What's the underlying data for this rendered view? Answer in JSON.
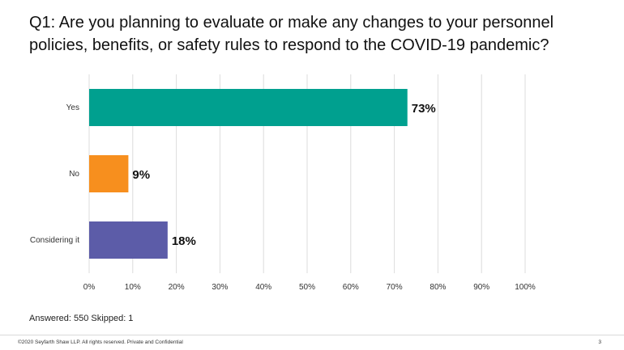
{
  "slide": {
    "title": "Q1:  Are you planning to evaluate or make any changes to your personnel policies, benefits, or safety rules to respond to the COVID-19 pandemic?",
    "answered_text": "Answered: 550    Skipped: 1",
    "footer_text": "©2020 Seyfarth Shaw LLP. All rights reserved. Private and Confidential",
    "page_number": "3"
  },
  "chart_data": {
    "type": "bar",
    "orientation": "horizontal",
    "categories": [
      "Yes",
      "No",
      "Considering it"
    ],
    "values": [
      73,
      9,
      18
    ],
    "value_labels": [
      "73%",
      "9%",
      "18%"
    ],
    "colors": [
      "#00a08f",
      "#f78f1e",
      "#5c5ca8"
    ],
    "xlim": [
      0,
      100
    ],
    "ticks": [
      0,
      10,
      20,
      30,
      40,
      50,
      60,
      70,
      80,
      90,
      100
    ],
    "tick_labels": [
      "0%",
      "10%",
      "20%",
      "30%",
      "40%",
      "50%",
      "60%",
      "70%",
      "80%",
      "90%",
      "100%"
    ],
    "grid": true,
    "legend": "none"
  }
}
